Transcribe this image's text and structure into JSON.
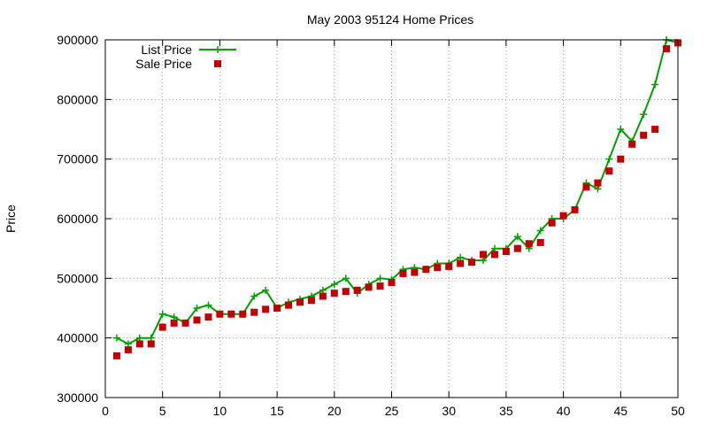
{
  "chart_data": {
    "type": "line",
    "title": "May 2003 95124 Home Prices",
    "xlabel": "",
    "ylabel": "Price",
    "xlim": [
      0,
      50
    ],
    "ylim": [
      300000,
      900000
    ],
    "x_ticks": [
      0,
      5,
      10,
      15,
      20,
      25,
      30,
      35,
      40,
      45,
      50
    ],
    "y_ticks": [
      300000,
      400000,
      500000,
      600000,
      700000,
      800000,
      900000
    ],
    "x_tick_labels": [
      "0",
      "5",
      "10",
      "15",
      "20",
      "25",
      "30",
      "35",
      "40",
      "45",
      "50"
    ],
    "y_tick_labels": [
      "300000",
      "400000",
      "500000",
      "600000",
      "700000",
      "800000",
      "900000"
    ],
    "grid": true,
    "legend_position": "top-left",
    "series": [
      {
        "name": "List Price",
        "style": "line-plus",
        "color": "#00a000",
        "x": [
          1,
          2,
          3,
          4,
          5,
          6,
          7,
          8,
          9,
          10,
          11,
          12,
          13,
          14,
          15,
          16,
          17,
          18,
          19,
          20,
          21,
          22,
          23,
          24,
          25,
          26,
          27,
          28,
          29,
          30,
          31,
          32,
          33,
          34,
          35,
          36,
          37,
          38,
          39,
          40,
          41,
          42,
          43,
          44,
          45,
          46,
          47,
          48,
          49,
          50
        ],
        "values": [
          400000,
          390000,
          400000,
          400000,
          440000,
          435000,
          425000,
          450000,
          455000,
          440000,
          440000,
          440000,
          470000,
          480000,
          450000,
          460000,
          465000,
          470000,
          480000,
          490000,
          500000,
          475000,
          490000,
          500000,
          498000,
          515000,
          518000,
          515000,
          525000,
          525000,
          535000,
          530000,
          530000,
          550000,
          550000,
          570000,
          550000,
          580000,
          600000,
          600000,
          615000,
          660000,
          650000,
          700000,
          750000,
          730000,
          775000,
          825000,
          900000,
          895000
        ]
      },
      {
        "name": "Sale Price",
        "style": "points-square",
        "color": "#c00000",
        "x": [
          1,
          2,
          3,
          4,
          5,
          6,
          7,
          8,
          9,
          10,
          11,
          12,
          13,
          14,
          15,
          16,
          17,
          18,
          19,
          20,
          21,
          22,
          23,
          24,
          25,
          26,
          27,
          28,
          29,
          30,
          31,
          32,
          33,
          34,
          35,
          36,
          37,
          38,
          39,
          40,
          41,
          42,
          43,
          44,
          45,
          46,
          47,
          48,
          49,
          50
        ],
        "values": [
          370000,
          380000,
          390000,
          390000,
          418000,
          425000,
          425000,
          430000,
          435000,
          440000,
          440000,
          440000,
          443000,
          448000,
          450000,
          455000,
          460000,
          463000,
          470000,
          475000,
          478000,
          480000,
          485000,
          487000,
          493000,
          508000,
          510000,
          515000,
          518000,
          520000,
          525000,
          527000,
          540000,
          540000,
          545000,
          550000,
          558000,
          560000,
          593000,
          605000,
          615000,
          653000,
          660000,
          680000,
          700000,
          725000,
          740000,
          750000,
          885000,
          895000
        ]
      }
    ]
  }
}
